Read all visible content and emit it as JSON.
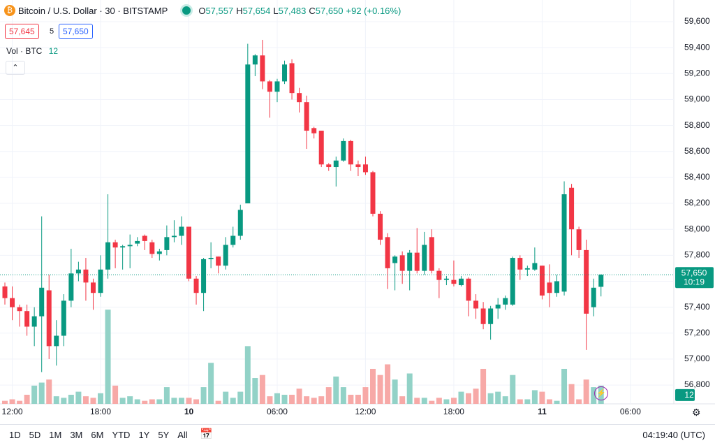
{
  "header": {
    "symbol": "Bitcoin / U.S. Dollar · 30 · BITSTAMP",
    "o_label": "O",
    "o": "57,557",
    "h_label": "H",
    "h": "57,654",
    "l_label": "L",
    "l": "57,483",
    "c_label": "C",
    "c": "57,650",
    "change": "+92 (+0.16%)",
    "bid": "57,645",
    "spread": "5",
    "ask": "57,650",
    "vol_label": "Vol · BTC",
    "vol_value": "12"
  },
  "toolbar": {
    "ranges": [
      "1D",
      "5D",
      "1M",
      "3M",
      "6M",
      "YTD",
      "1Y",
      "5Y",
      "All"
    ],
    "clock": "04:19:40 (UTC)"
  },
  "chart_data": {
    "type": "candlestick",
    "categories": [
      null,
      "12:00",
      null,
      null,
      null,
      null,
      null,
      null,
      null,
      null,
      null,
      null,
      null,
      "18:00",
      null,
      null,
      null,
      null,
      null,
      null,
      null,
      null,
      null,
      null,
      null,
      "10",
      null,
      null,
      null,
      null,
      null,
      null,
      null,
      null,
      null,
      null,
      null,
      "06:00",
      null,
      null,
      null,
      null,
      null,
      null,
      null,
      null,
      null,
      null,
      null,
      "12:00",
      null,
      null,
      null,
      null,
      null,
      null,
      null,
      null,
      null,
      null,
      null,
      "18:00",
      null,
      null,
      null,
      null,
      null,
      null,
      null,
      null,
      null,
      null,
      null,
      "11",
      null,
      null,
      null,
      null,
      null,
      null,
      null,
      null,
      null,
      null,
      null,
      "06:00"
    ],
    "open": [
      57560,
      57470,
      57400,
      57370,
      57250,
      57330,
      57530,
      57100,
      57180,
      57450,
      57660,
      57690,
      57590,
      57510,
      57690,
      57900,
      57860,
      57870,
      57890,
      57950,
      57900,
      57810,
      57840,
      57940,
      57950,
      58020,
      57620,
      57510,
      57770,
      57790,
      57720,
      57880,
      57950,
      58200,
      59270,
      59340,
      59140,
      59060,
      59140,
      59280,
      59050,
      58980,
      58780,
      58760,
      58500,
      58480,
      58530,
      58680,
      58500,
      58500,
      58440,
      58120,
      57940,
      57740,
      57800,
      57680,
      57820,
      57680,
      57940,
      57680,
      57610,
      57610,
      57570,
      57620,
      57450,
      57390,
      57270,
      57390,
      57420,
      57420,
      57780,
      57690,
      57690,
      57720,
      57590,
      57510,
      57520,
      58320,
      58000,
      57840,
      57400,
      57557,
      null,
      null,
      null,
      null
    ],
    "high": [
      57590,
      57560,
      57420,
      57420,
      57400,
      58100,
      57650,
      57300,
      57500,
      57850,
      57750,
      57780,
      57620,
      57800,
      58270,
      57920,
      57880,
      57960,
      57940,
      57960,
      57920,
      57850,
      58030,
      58070,
      58100,
      58020,
      57640,
      57780,
      57900,
      57790,
      57940,
      58020,
      58190,
      59430,
      59350,
      59460,
      59150,
      59160,
      59300,
      59310,
      59090,
      59030,
      58790,
      58760,
      58510,
      58560,
      58700,
      58690,
      58530,
      58560,
      58450,
      58140,
      57970,
      57800,
      57830,
      57840,
      58010,
      57980,
      58000,
      57700,
      57640,
      57760,
      57640,
      57630,
      57500,
      57440,
      57410,
      57470,
      57490,
      57790,
      57800,
      57720,
      57860,
      57720,
      57730,
      57650,
      58370,
      58350,
      58020,
      57920,
      57620,
      57654,
      null,
      null,
      null,
      null
    ],
    "low": [
      57420,
      57300,
      57250,
      57180,
      57100,
      56900,
      57000,
      56950,
      57100,
      57400,
      57600,
      57450,
      57380,
      57480,
      57620,
      57700,
      57690,
      57700,
      57870,
      57840,
      57780,
      57760,
      57800,
      57900,
      57880,
      57600,
      57420,
      57370,
      57700,
      57660,
      57690,
      57860,
      57920,
      58200,
      59180,
      59080,
      58860,
      58980,
      59120,
      59000,
      58900,
      58620,
      58700,
      58480,
      58450,
      58330,
      58520,
      58450,
      58410,
      58420,
      58100,
      57880,
      57540,
      57530,
      57580,
      57530,
      57660,
      57650,
      57660,
      57470,
      57570,
      57560,
      57560,
      57330,
      57310,
      57230,
      57150,
      57310,
      57380,
      57410,
      57610,
      57640,
      57680,
      57460,
      57400,
      57480,
      57490,
      57800,
      57780,
      57070,
      57330,
      57483,
      null,
      null,
      null,
      null
    ],
    "close": [
      57470,
      57400,
      57370,
      57250,
      57330,
      57550,
      57100,
      57180,
      57450,
      57660,
      57690,
      57590,
      57510,
      57690,
      57900,
      57860,
      57870,
      57880,
      57910,
      57910,
      57810,
      57830,
      57940,
      57950,
      58020,
      57620,
      57510,
      57770,
      57780,
      57720,
      57880,
      57950,
      58150,
      59270,
      59340,
      59140,
      59060,
      59140,
      59270,
      59050,
      58980,
      58760,
      58740,
      58500,
      58480,
      58530,
      58680,
      58500,
      58480,
      58440,
      58120,
      57920,
      57700,
      57790,
      57680,
      57820,
      57680,
      57880,
      57680,
      57610,
      57620,
      57580,
      57620,
      57450,
      57390,
      57270,
      57390,
      57420,
      57470,
      57780,
      57690,
      57700,
      57740,
      57490,
      57510,
      57600,
      58270,
      58000,
      57840,
      57350,
      57550,
      57650,
      null,
      null,
      null,
      null
    ],
    "volume": [
      2,
      3,
      2,
      6,
      12,
      14,
      16,
      5,
      4,
      6,
      8,
      5,
      4,
      7,
      62,
      12,
      4,
      5,
      3,
      2,
      3,
      3,
      11,
      4,
      4,
      4,
      3,
      11,
      27,
      2,
      8,
      4,
      8,
      38,
      17,
      19,
      5,
      7,
      6,
      6,
      10,
      5,
      4,
      5,
      11,
      18,
      11,
      6,
      6,
      11,
      23,
      19,
      26,
      16,
      5,
      20,
      4,
      4,
      2,
      4,
      3,
      4,
      8,
      7,
      10,
      23,
      7,
      8,
      5,
      19,
      3,
      3,
      9,
      8,
      3,
      2,
      23,
      13,
      3,
      16,
      11,
      12,
      null,
      null,
      null,
      null
    ],
    "up_color": "#089981",
    "down_color": "#f23645",
    "up_volume_color": "#92d2c7",
    "down_volume_color": "#f7a9a7",
    "ylim": [
      56655,
      59767
    ],
    "vol_ylim": [
      0,
      80
    ],
    "yticks": [
      {
        "value": 56800,
        "label": "56,800"
      },
      {
        "value": 57000,
        "label": "57,000"
      },
      {
        "value": 57200,
        "label": "57,200"
      },
      {
        "value": 57400,
        "label": "57,400"
      },
      {
        "value": 57600,
        "label": "57,600"
      },
      {
        "value": 57800,
        "label": "57,800"
      },
      {
        "value": 58000,
        "label": "58,000"
      },
      {
        "value": 58200,
        "label": "58,200"
      },
      {
        "value": 58400,
        "label": "58,400"
      },
      {
        "value": 58600,
        "label": "58,600"
      },
      {
        "value": 58800,
        "label": "58,800"
      },
      {
        "value": 59000,
        "label": "59,000"
      },
      {
        "value": 59200,
        "label": "59,200"
      },
      {
        "value": 59400,
        "label": "59,400"
      },
      {
        "value": 59600,
        "label": "59,600"
      }
    ],
    "last_price": {
      "value": 57650,
      "label": "57,650"
    },
    "countdown": "10:19",
    "last_volume": 12,
    "grid": true
  }
}
